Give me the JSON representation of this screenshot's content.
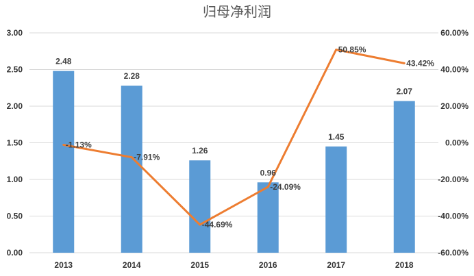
{
  "chart_data": {
    "type": "bar",
    "title": "归母净利润",
    "categories": [
      "2013",
      "2014",
      "2015",
      "2016",
      "2017",
      "2018"
    ],
    "series": [
      {
        "type": "bar",
        "axis": "left",
        "color": "#5B9BD5",
        "values": [
          2.48,
          2.28,
          1.26,
          0.96,
          1.45,
          2.07
        ],
        "labels": [
          "2.48",
          "2.28",
          "1.26",
          "0.96",
          "1.45",
          "2.07"
        ]
      },
      {
        "type": "line",
        "axis": "right",
        "color": "#ED7D31",
        "values": [
          -1.13,
          -7.91,
          -44.69,
          -24.09,
          50.85,
          43.42
        ],
        "labels": [
          "-1.13%",
          "-7.91%",
          "-44.69%",
          "-24.09%",
          "50.85%",
          "43.42%"
        ]
      }
    ],
    "y_left": {
      "range": [
        0,
        3
      ],
      "ticks": [
        0,
        0.5,
        1,
        1.5,
        2,
        2.5,
        3
      ],
      "tick_labels": [
        "0.00",
        "0.50",
        "1.00",
        "1.50",
        "2.00",
        "2.50",
        "3.00"
      ]
    },
    "y_right": {
      "range": [
        -60,
        60
      ],
      "ticks": [
        -60,
        -40,
        -20,
        0,
        20,
        40,
        60
      ],
      "tick_labels": [
        "-60.00%",
        "-40.00%",
        "-20.00%",
        "0.00%",
        "20.00%",
        "40.00%",
        "60.00%"
      ]
    },
    "grid": true,
    "legend": "none"
  }
}
